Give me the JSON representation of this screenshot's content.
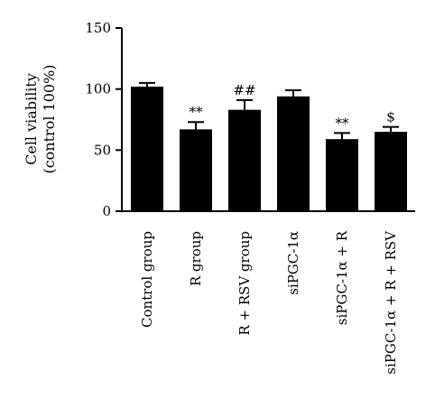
{
  "chart_data": {
    "type": "bar",
    "title": "",
    "xlabel": "",
    "ylabel_lines": [
      "Cell viability",
      "(control 100%)"
    ],
    "ylim": [
      0,
      150
    ],
    "yticks": [
      0,
      50,
      100,
      150
    ],
    "categories": [
      "Control group",
      "R group",
      "R + RSV group",
      "siPGC-1α",
      "siPGC-1α + R",
      "siPGC-1α + R + RSV"
    ],
    "values": [
      102,
      67,
      83,
      94,
      59,
      65
    ],
    "errors": [
      3,
      6,
      8,
      5,
      5,
      4
    ],
    "annotations": [
      "",
      "**",
      "##",
      "",
      "**",
      "$"
    ],
    "bar_color": "#000000",
    "grid": false,
    "legend": "none"
  }
}
